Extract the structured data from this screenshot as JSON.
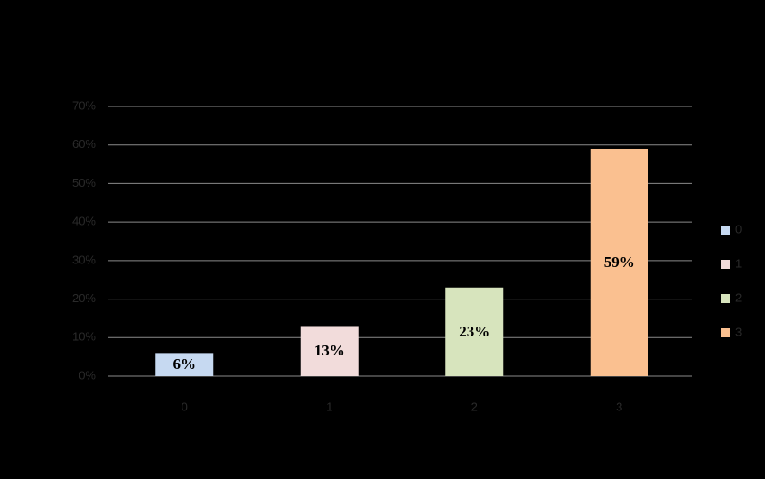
{
  "chart_data": {
    "type": "bar",
    "categories": [
      "0",
      "1",
      "2",
      "3"
    ],
    "values": [
      6,
      13,
      23,
      59
    ],
    "value_labels": [
      "6%",
      "13%",
      "23%",
      "59%"
    ],
    "colors": [
      "#c6d9f1",
      "#f2dcdb",
      "#d7e4bd",
      "#fac090"
    ],
    "ylim": [
      0,
      70
    ],
    "yticks": [
      {
        "value": 0,
        "label": "0%"
      },
      {
        "value": 10,
        "label": "10%"
      },
      {
        "value": 20,
        "label": "20%"
      },
      {
        "value": 30,
        "label": "30%"
      },
      {
        "value": 40,
        "label": "40%"
      },
      {
        "value": 50,
        "label": "50%"
      },
      {
        "value": 60,
        "label": "60%"
      },
      {
        "value": 70,
        "label": "70%"
      }
    ],
    "grid": true,
    "legend": "right"
  }
}
